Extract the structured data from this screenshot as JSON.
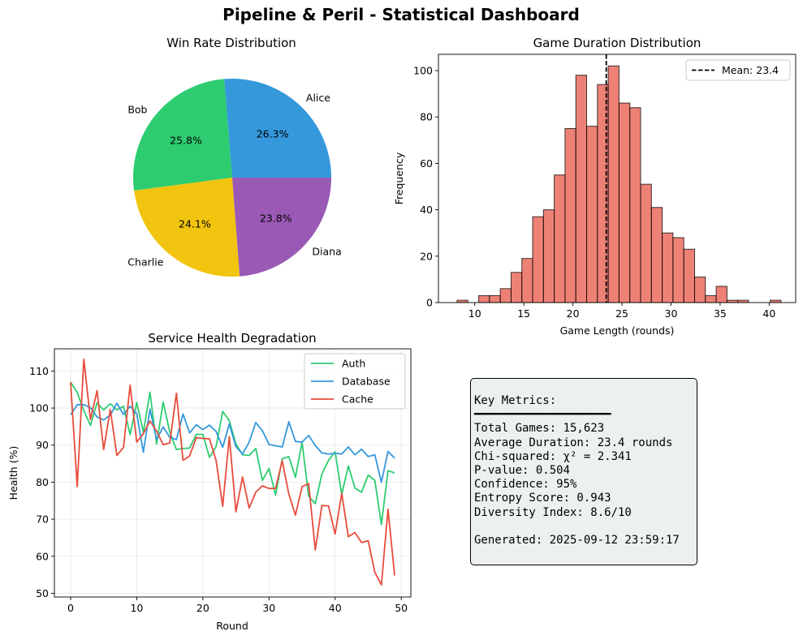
{
  "figure_title": "Pipeline & Peril - Statistical Dashboard",
  "metrics": {
    "heading": "Key Metrics:",
    "rule": "━━━━━━━━━━━━━━━━━━━━",
    "lines": [
      "Total Games: 15,623",
      "Average Duration: 23.4 rounds",
      "Chi-squared: χ² = 2.341",
      "P-value: 0.504",
      "Confidence: 95%",
      "Entropy Score: 0.943",
      "Diversity Index: 8.6/10"
    ],
    "generated": "Generated: 2025-09-12 23:59:17"
  },
  "chart_data": [
    {
      "type": "pie",
      "title": "Win Rate Distribution",
      "labels": [
        "Alice",
        "Bob",
        "Charlie",
        "Diana"
      ],
      "values": [
        26.3,
        25.8,
        24.1,
        23.8
      ],
      "value_labels": [
        "26.3%",
        "25.8%",
        "24.1%",
        "23.8%"
      ],
      "colors": [
        "#3498db",
        "#2ecc71",
        "#f1c40f",
        "#9b59b6"
      ]
    },
    {
      "type": "bar",
      "subtype": "histogram",
      "title": "Game Duration Distribution",
      "xlabel": "Game Length (rounds)",
      "ylabel": "Frequency",
      "xlim": [
        6.3,
        42.7
      ],
      "ylim": [
        0,
        107
      ],
      "xticks": [
        10,
        15,
        20,
        25,
        30,
        35,
        40
      ],
      "yticks": [
        0,
        20,
        40,
        60,
        80,
        100
      ],
      "bin_start": 8.2,
      "bin_width": 1.1,
      "counts": [
        1,
        0,
        3,
        3,
        6,
        13,
        19,
        37,
        40,
        55,
        75,
        98,
        76,
        94,
        102,
        86,
        84,
        51,
        41,
        30,
        28,
        23,
        11,
        3,
        7,
        1,
        1,
        0,
        0,
        1
      ],
      "color": "#e74c3c",
      "mean": 23.4,
      "mean_label": "Mean: 23.4",
      "legend": "top-right",
      "grid": false
    },
    {
      "type": "line",
      "title": "Service Health Degradation",
      "xlabel": "Round",
      "ylabel": "Health (%)",
      "xlim": [
        -2.45,
        51.45
      ],
      "ylim": [
        49,
        116
      ],
      "xticks": [
        0,
        10,
        20,
        30,
        40,
        50
      ],
      "yticks": [
        50,
        60,
        70,
        80,
        90,
        100,
        110
      ],
      "grid": true,
      "legend": "top-right",
      "x": [
        0,
        1,
        2,
        3,
        4,
        5,
        6,
        7,
        8,
        9,
        10,
        11,
        12,
        13,
        14,
        15,
        16,
        17,
        18,
        19,
        20,
        21,
        22,
        23,
        24,
        25,
        26,
        27,
        28,
        29,
        30,
        31,
        32,
        33,
        34,
        35,
        36,
        37,
        38,
        39,
        40,
        41,
        42,
        43,
        44,
        45,
        46,
        47,
        48,
        49
      ],
      "series": [
        {
          "name": "Auth",
          "color": "#2ecc71",
          "values": [
            107,
            104.2,
            99.3,
            95.3,
            101.4,
            99.5,
            101.2,
            99.5,
            100.5,
            92.8,
            101.5,
            93.5,
            104.3,
            90.3,
            101.6,
            93.5,
            88.8,
            89.1,
            89.2,
            92.9,
            92.9,
            86.7,
            89.6,
            99.1,
            96.6,
            90.3,
            87.4,
            87.2,
            89.1,
            80.5,
            83.7,
            76.5,
            86.3,
            86.9,
            81.3,
            90.8,
            76.2,
            74.2,
            82.2,
            85.9,
            88.2,
            76.7,
            84.4,
            78.4,
            77.3,
            81.9,
            80.5,
            68.6,
            83.1,
            82.5
          ]
        },
        {
          "name": "Database",
          "color": "#3498db",
          "values": [
            98.2,
            100.9,
            100.9,
            100.1,
            97.6,
            96.8,
            98.1,
            101.3,
            98.3,
            100.5,
            98.5,
            88.1,
            99.7,
            91.5,
            94.9,
            92.1,
            91.5,
            98.4,
            93.3,
            95.5,
            94.2,
            95.4,
            93.7,
            89.4,
            95.7,
            89.6,
            87.6,
            90.8,
            96.1,
            93.9,
            90.2,
            89.8,
            89.5,
            96.3,
            91,
            90.8,
            92.6,
            89.9,
            87.9,
            87.6,
            87.8,
            87.6,
            89.5,
            87.4,
            88.9,
            86.9,
            87.4,
            80,
            88.3,
            86.5
          ]
        },
        {
          "name": "Cache",
          "color": "#e74c3c",
          "values": [
            107,
            78.8,
            113.2,
            96.9,
            104.7,
            88.8,
            99.6,
            87.2,
            89.4,
            106.2,
            90.8,
            93.1,
            96.5,
            93.8,
            90.1,
            90.6,
            104,
            85.9,
            87.1,
            92,
            91.8,
            91.7,
            85.9,
            73.5,
            92.3,
            72,
            81.4,
            73,
            77.3,
            79,
            78.3,
            78.3,
            85.8,
            76.8,
            71.1,
            78.8,
            79.6,
            61.7,
            73.7,
            73.6,
            66,
            77,
            65.3,
            66.4,
            63.7,
            64.2,
            55.7,
            52.3,
            72.7,
            54.8
          ]
        }
      ]
    }
  ]
}
